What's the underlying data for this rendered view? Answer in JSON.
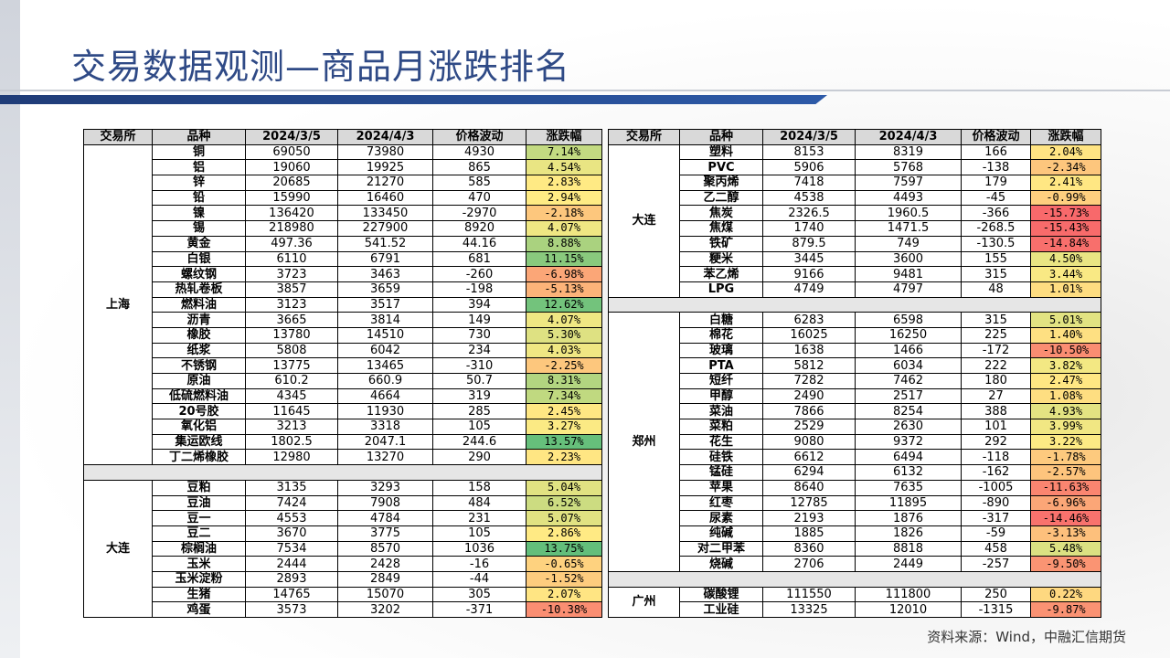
{
  "header": {
    "title": "交易数据观测—商品月涨跌排名"
  },
  "left_table": {
    "headers": [
      "交易所",
      "品种",
      "2024/3/5",
      "2024/4/3",
      "价格波动",
      "涨跌幅"
    ],
    "groups": [
      {
        "exchange": "上海",
        "rows": [
          [
            "铜",
            "69050",
            "73980",
            "4930",
            "7.14%"
          ],
          [
            "铝",
            "19060",
            "19925",
            "865",
            "4.54%"
          ],
          [
            "锌",
            "20685",
            "21270",
            "585",
            "2.83%"
          ],
          [
            "铅",
            "15990",
            "16460",
            "470",
            "2.94%"
          ],
          [
            "镍",
            "136420",
            "133450",
            "-2970",
            "-2.18%"
          ],
          [
            "锡",
            "218980",
            "227900",
            "8920",
            "4.07%"
          ],
          [
            "黄金",
            "497.36",
            "541.52",
            "44.16",
            "8.88%"
          ],
          [
            "白银",
            "6110",
            "6791",
            "681",
            "11.15%"
          ],
          [
            "螺纹钢",
            "3723",
            "3463",
            "-260",
            "-6.98%"
          ],
          [
            "热轧卷板",
            "3857",
            "3659",
            "-198",
            "-5.13%"
          ],
          [
            "燃料油",
            "3123",
            "3517",
            "394",
            "12.62%"
          ],
          [
            "沥青",
            "3665",
            "3814",
            "149",
            "4.07%"
          ],
          [
            "橡胶",
            "13780",
            "14510",
            "730",
            "5.30%"
          ],
          [
            "纸浆",
            "5808",
            "6042",
            "234",
            "4.03%"
          ],
          [
            "不锈钢",
            "13775",
            "13465",
            "-310",
            "-2.25%"
          ],
          [
            "原油",
            "610.2",
            "660.9",
            "50.7",
            "8.31%"
          ],
          [
            "低硫燃料油",
            "4345",
            "4664",
            "319",
            "7.34%"
          ],
          [
            "20号胶",
            "11645",
            "11930",
            "285",
            "2.45%"
          ],
          [
            "氧化铝",
            "3213",
            "3318",
            "105",
            "3.27%"
          ],
          [
            "集运欧线",
            "1802.5",
            "2047.1",
            "244.6",
            "13.57%"
          ],
          [
            "丁二烯橡胶",
            "12980",
            "13270",
            "290",
            "2.23%"
          ]
        ]
      },
      {
        "exchange": "大连",
        "rows": [
          [
            "豆粕",
            "3135",
            "3293",
            "158",
            "5.04%"
          ],
          [
            "豆油",
            "7424",
            "7908",
            "484",
            "6.52%"
          ],
          [
            "豆一",
            "4553",
            "4784",
            "231",
            "5.07%"
          ],
          [
            "豆二",
            "3670",
            "3775",
            "105",
            "2.86%"
          ],
          [
            "棕榈油",
            "7534",
            "8570",
            "1036",
            "13.75%"
          ],
          [
            "玉米",
            "2444",
            "2428",
            "-16",
            "-0.65%"
          ],
          [
            "玉米淀粉",
            "2893",
            "2849",
            "-44",
            "-1.52%"
          ],
          [
            "生猪",
            "14765",
            "15070",
            "305",
            "2.07%"
          ],
          [
            "鸡蛋",
            "3573",
            "3202",
            "-371",
            "-10.38%"
          ]
        ]
      }
    ]
  },
  "right_table": {
    "headers": [
      "交易所",
      "品种",
      "2024/3/5",
      "2024/4/3",
      "价格波动",
      "涨跌幅"
    ],
    "groups": [
      {
        "exchange": "大连",
        "rows": [
          [
            "塑料",
            "8153",
            "8319",
            "166",
            "2.04%"
          ],
          [
            "PVC",
            "5906",
            "5768",
            "-138",
            "-2.34%"
          ],
          [
            "聚丙烯",
            "7418",
            "7597",
            "179",
            "2.41%"
          ],
          [
            "乙二醇",
            "4538",
            "4493",
            "-45",
            "-0.99%"
          ],
          [
            "焦炭",
            "2326.5",
            "1960.5",
            "-366",
            "-15.73%"
          ],
          [
            "焦煤",
            "1740",
            "1471.5",
            "-268.5",
            "-15.43%"
          ],
          [
            "铁矿",
            "879.5",
            "749",
            "-130.5",
            "-14.84%"
          ],
          [
            "粳米",
            "3445",
            "3600",
            "155",
            "4.50%"
          ],
          [
            "苯乙烯",
            "9166",
            "9481",
            "315",
            "3.44%"
          ],
          [
            "LPG",
            "4749",
            "4797",
            "48",
            "1.01%"
          ]
        ]
      },
      {
        "exchange": "郑州",
        "rows": [
          [
            "白糖",
            "6283",
            "6598",
            "315",
            "5.01%"
          ],
          [
            "棉花",
            "16025",
            "16250",
            "225",
            "1.40%"
          ],
          [
            "玻璃",
            "1638",
            "1466",
            "-172",
            "-10.50%"
          ],
          [
            "PTA",
            "5812",
            "6034",
            "222",
            "3.82%"
          ],
          [
            "短纤",
            "7282",
            "7462",
            "180",
            "2.47%"
          ],
          [
            "甲醇",
            "2490",
            "2517",
            "27",
            "1.08%"
          ],
          [
            "菜油",
            "7866",
            "8254",
            "388",
            "4.93%"
          ],
          [
            "菜粕",
            "2529",
            "2630",
            "101",
            "3.99%"
          ],
          [
            "花生",
            "9080",
            "9372",
            "292",
            "3.22%"
          ],
          [
            "硅铁",
            "6612",
            "6494",
            "-118",
            "-1.78%"
          ],
          [
            "锰硅",
            "6294",
            "6132",
            "-162",
            "-2.57%"
          ],
          [
            "苹果",
            "8640",
            "7635",
            "-1005",
            "-11.63%"
          ],
          [
            "红枣",
            "12785",
            "11895",
            "-890",
            "-6.96%"
          ],
          [
            "尿素",
            "2193",
            "1876",
            "-317",
            "-14.46%"
          ],
          [
            "纯碱",
            "1885",
            "1826",
            "-59",
            "-3.13%"
          ],
          [
            "对二甲苯",
            "8360",
            "8818",
            "458",
            "5.48%"
          ],
          [
            "烧碱",
            "2706",
            "2449",
            "-257",
            "-9.50%"
          ]
        ]
      },
      {
        "exchange": "广州",
        "rows": [
          [
            "碳酸锂",
            "111550",
            "111800",
            "250",
            "0.22%"
          ],
          [
            "工业硅",
            "13325",
            "12010",
            "-1315",
            "-9.87%"
          ]
        ]
      }
    ]
  },
  "source": "资料来源：Wind，中融汇信期货"
}
